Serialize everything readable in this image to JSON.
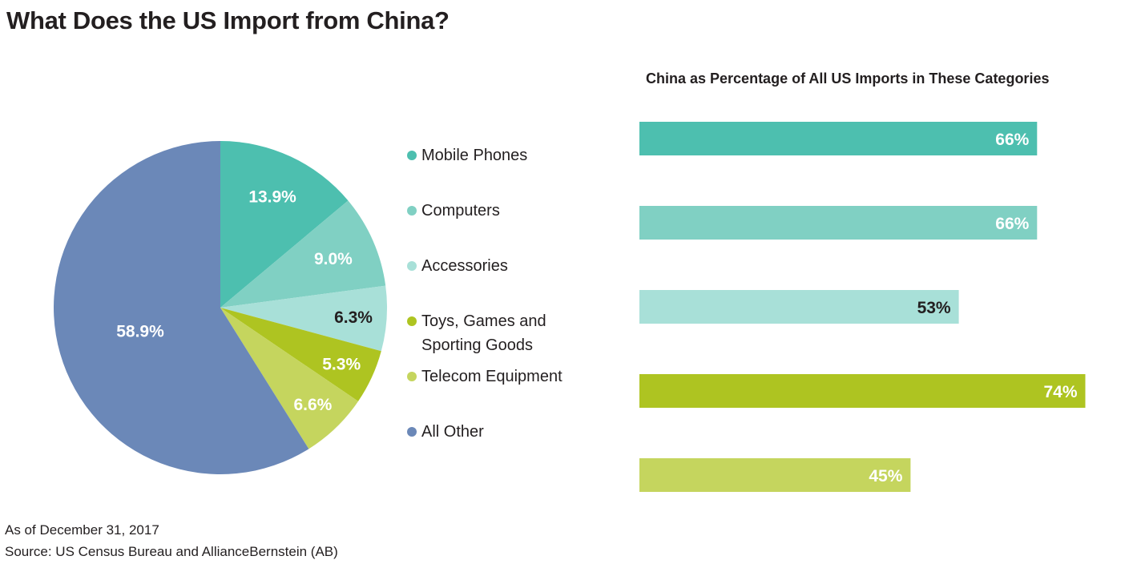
{
  "title": "What Does the US Import from China?",
  "footnotes": {
    "date": "As of December 31, 2017",
    "source": "Source: US Census Bureau and AllianceBernstein (AB)"
  },
  "chart_data": [
    {
      "type": "pie",
      "legend_position": "right",
      "slices": [
        {
          "label": "Mobile Phones",
          "value": 13.9,
          "display": "13.9%",
          "color": "#4dbfaf",
          "label_color": "#ffffff"
        },
        {
          "label": "Computers",
          "value": 9.0,
          "display": "9.0%",
          "color": "#80d0c3",
          "label_color": "#ffffff"
        },
        {
          "label": "Accessories",
          "value": 6.3,
          "display": "6.3%",
          "color": "#a8e0d8",
          "label_color": "#231f20"
        },
        {
          "label": "Toys, Games and\nSporting Goods",
          "value": 5.3,
          "display": "5.3%",
          "color": "#aec421",
          "label_color": "#ffffff"
        },
        {
          "label": "Telecom Equipment",
          "value": 6.6,
          "display": "6.6%",
          "color": "#c5d55e",
          "label_color": "#ffffff"
        },
        {
          "label": "All Other",
          "value": 58.9,
          "display": "58.9%",
          "color": "#6b88b8",
          "label_color": "#ffffff"
        }
      ]
    },
    {
      "type": "bar",
      "orientation": "horizontal",
      "title": "China as Percentage of All US Imports in These Categories",
      "xlim": [
        0,
        100
      ],
      "bars": [
        {
          "value": 66,
          "display": "66%",
          "color": "#4dbfaf",
          "label_color": "#ffffff"
        },
        {
          "value": 66,
          "display": "66%",
          "color": "#80d0c3",
          "label_color": "#ffffff"
        },
        {
          "value": 53,
          "display": "53%",
          "color": "#a8e0d8",
          "label_color": "#231f20"
        },
        {
          "value": 74,
          "display": "74%",
          "color": "#aec421",
          "label_color": "#ffffff"
        },
        {
          "value": 45,
          "display": "45%",
          "color": "#c5d55e",
          "label_color": "#ffffff"
        }
      ]
    }
  ]
}
